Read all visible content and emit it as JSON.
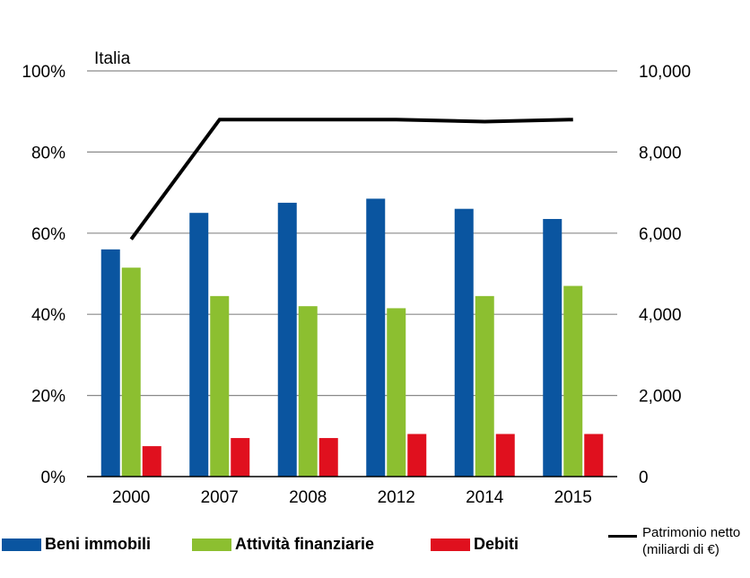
{
  "chart_data": {
    "type": "bar",
    "title": "Italia",
    "categories": [
      "2000",
      "2007",
      "2008",
      "2012",
      "2014",
      "2015"
    ],
    "series": [
      {
        "name": "Beni immobili",
        "type": "bar",
        "axis": "left",
        "color": "#0a55a0",
        "values": [
          56,
          65,
          67.5,
          68.5,
          66,
          63.5
        ]
      },
      {
        "name": "Attività finanziarie",
        "type": "bar",
        "axis": "left",
        "color": "#8cbf30",
        "values": [
          51.5,
          44.5,
          42,
          41.5,
          44.5,
          47
        ]
      },
      {
        "name": "Debiti",
        "type": "bar",
        "axis": "left",
        "color": "#e0101e",
        "values": [
          7.5,
          9.5,
          9.5,
          10.5,
          10.5,
          10.5
        ]
      },
      {
        "name": "Patrimonio netto\n(miliardi di €)",
        "type": "line",
        "axis": "right",
        "color": "#000000",
        "values": [
          5850,
          8800,
          8800,
          8800,
          8750,
          8800
        ]
      }
    ],
    "y_left": {
      "ylim": [
        0,
        100
      ],
      "ticks": [
        0,
        20,
        40,
        60,
        80,
        100
      ],
      "tick_labels": [
        "0%",
        "20%",
        "40%",
        "60%",
        "80%",
        "100%"
      ]
    },
    "y_right": {
      "ylim": [
        0,
        10000
      ],
      "ticks": [
        0,
        2000,
        4000,
        6000,
        8000,
        10000
      ],
      "tick_labels": [
        "0",
        "2,000",
        "4,000",
        "6,000",
        "8,000",
        "10,000"
      ]
    },
    "grid": true,
    "legend_position": "bottom"
  },
  "legend": {
    "items": [
      {
        "label": "Beni immobili",
        "color": "#0a55a0"
      },
      {
        "label": "Attività finanziarie",
        "color": "#8cbf30"
      },
      {
        "label": "Debiti",
        "color": "#e0101e"
      }
    ],
    "line_label_1": "Patrimonio netto",
    "line_label_2": "(miliardi di €)"
  }
}
